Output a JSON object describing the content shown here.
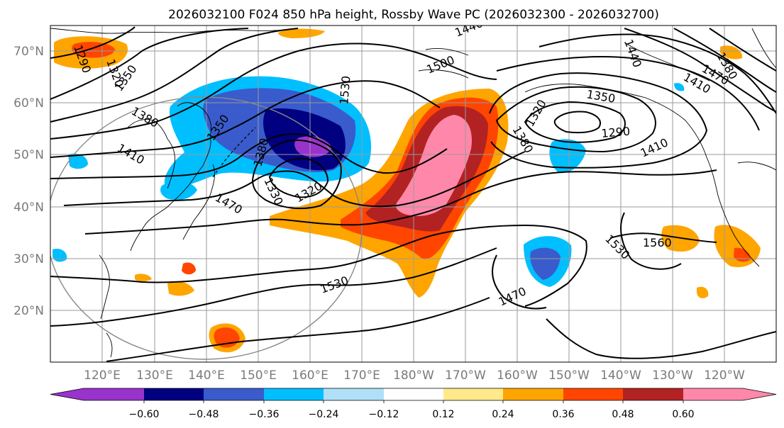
{
  "title": "2026032100 F024 850 hPa height, Rossby Wave PC (2026032300 - 2026032700)",
  "map": {
    "lat_labels": [
      "70°N",
      "60°N",
      "50°N",
      "40°N",
      "30°N",
      "20°N"
    ],
    "lon_labels": [
      "120°E",
      "130°E",
      "140°E",
      "150°E",
      "160°E",
      "170°E",
      "180°W",
      "170°W",
      "160°W",
      "150°W",
      "140°W",
      "130°W",
      "120°W"
    ],
    "contour_labels": [
      "1440",
      "1440",
      "1290",
      "1320",
      "1350",
      "1380",
      "1410",
      "1350",
      "1470",
      "1530",
      "1500",
      "1380",
      "1320",
      "1330",
      "1320",
      "1350",
      "1290",
      "1410",
      "1380",
      "1470",
      "1530",
      "1560",
      "1530",
      "1470",
      "1410",
      "1380"
    ]
  },
  "colorbar": {
    "ticks": [
      "−0.60",
      "−0.48",
      "−0.36",
      "−0.24",
      "−0.12",
      "0.12",
      "0.24",
      "0.36",
      "0.48",
      "0.60"
    ],
    "colors": [
      "#9933cc",
      "#000080",
      "#3a5bcc",
      "#00bfff",
      "#b0e0f8",
      "#ffffff",
      "#ffe98a",
      "#ffa500",
      "#ff4500",
      "#b22222",
      "#ff88aa",
      "#ff88aa"
    ]
  },
  "colors": {
    "coast": "#000000",
    "grid": "#9a9a9a",
    "contour": "#000000"
  }
}
